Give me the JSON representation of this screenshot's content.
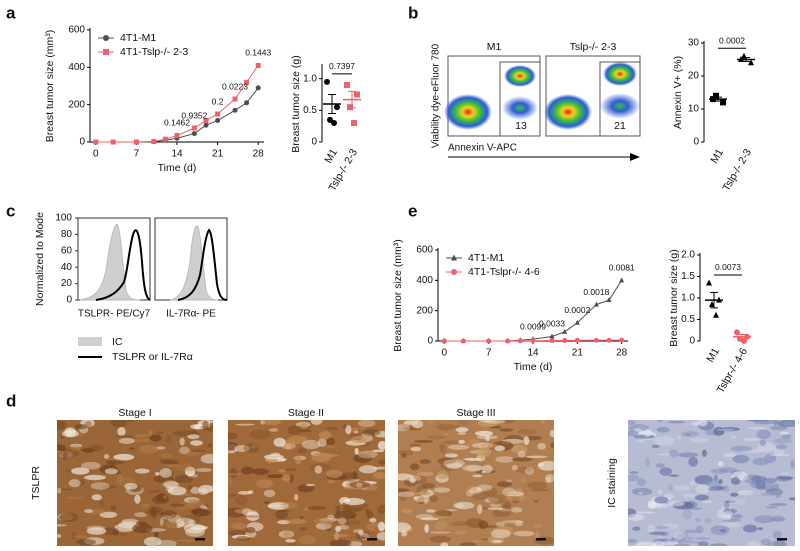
{
  "panel_labels": [
    "a",
    "b",
    "c",
    "d",
    "e"
  ],
  "chart_data": [
    {
      "type": "line",
      "ylabel": "Breast tumor size (mm³)",
      "xlabel": "Time (d)",
      "x": [
        0,
        3,
        7,
        10,
        12,
        14,
        17,
        19,
        21,
        24,
        26,
        28
      ],
      "xlim": [
        -1,
        29
      ],
      "xticks": [
        0,
        7,
        14,
        21,
        28
      ],
      "ylim": [
        0,
        600
      ],
      "yticks": [
        0,
        200,
        400,
        600
      ],
      "legend": "upper left",
      "series": [
        {
          "name": "4T1-M1",
          "color": "#4d4d4d",
          "marker": "circle",
          "values": [
            0,
            0,
            0,
            2,
            10,
            20,
            45,
            90,
            115,
            170,
            210,
            290
          ]
        },
        {
          "name": "4T1-Tslp-/- 2-3",
          "color": "#f0606a",
          "marker": "square",
          "values": [
            0,
            0,
            0,
            3,
            15,
            35,
            75,
            115,
            150,
            230,
            320,
            410
          ]
        }
      ],
      "annotations": [
        {
          "x": 14,
          "text": "0.1462"
        },
        {
          "x": 17,
          "text": "0.9352"
        },
        {
          "x": 21,
          "text": "0.2"
        },
        {
          "x": 24,
          "text": "0.0223"
        },
        {
          "x": 28,
          "text": "0.1443"
        }
      ]
    },
    {
      "type": "dot",
      "ylabel": "Breast tumor size (g)",
      "categories": [
        "M1",
        "Tslp-/- 2-3"
      ],
      "points": [
        [
          0.95,
          0.55,
          0.35,
          0.3
        ],
        [
          0.9,
          0.75,
          0.55,
          0.3
        ]
      ],
      "means": [
        0.6,
        0.67
      ],
      "errors": [
        0.15,
        0.13
      ],
      "colors": [
        "#000000",
        "#f0606a"
      ],
      "markers": [
        "circle",
        "square"
      ],
      "ylim": [
        0,
        1.2
      ],
      "yticks": [
        0,
        0.5,
        {
          "value": 1,
          "label": "1.0"
        }
      ],
      "annotation": "0.7397"
    },
    {
      "type": "dot",
      "ylabel": "Annexin V+ (%)",
      "categories": [
        "M1",
        "Tslp-/- 2-3"
      ],
      "points": [
        [
          13,
          12,
          14
        ],
        [
          25,
          24,
          26
        ]
      ],
      "means": [
        13,
        25
      ],
      "errors": [
        0.6,
        0.6
      ],
      "colors": [
        "#000000",
        "#000000"
      ],
      "markers": [
        "square",
        "triangle"
      ],
      "ylim": [
        0,
        30
      ],
      "yticks": [
        0,
        10,
        20,
        30
      ],
      "annotation": "0.0002"
    },
    {
      "type": "line",
      "ylabel": "Breast tumor size (mm³)",
      "xlabel": "Time (d)",
      "x": [
        0,
        3,
        7,
        10,
        12,
        14,
        17,
        19,
        21,
        24,
        26,
        28
      ],
      "xlim": [
        -1,
        29
      ],
      "xticks": [
        0,
        7,
        14,
        21,
        28
      ],
      "ylim": [
        0,
        600
      ],
      "yticks": [
        0,
        200,
        400,
        600
      ],
      "legend": "upper left",
      "series": [
        {
          "name": "4T1-M1",
          "color": "#4d4d4d",
          "marker": "triangle",
          "values": [
            0,
            0,
            0,
            1,
            5,
            12,
            30,
            60,
            120,
            240,
            270,
            400
          ]
        },
        {
          "name": "4T1-Tslpr-/- 4-6",
          "color": "#f0606a",
          "marker": "circle",
          "values": [
            0,
            0,
            0,
            0,
            1,
            2,
            3,
            3,
            4,
            5,
            5,
            6
          ]
        }
      ],
      "annotations": [
        {
          "x": 14,
          "text": "0.0099"
        },
        {
          "x": 17,
          "text": "0.0033"
        },
        {
          "x": 21,
          "text": "0.0002"
        },
        {
          "x": 24,
          "text": "0.0018"
        },
        {
          "x": 28,
          "text": "0.0081"
        }
      ]
    },
    {
      "type": "dot",
      "ylabel": "Breast tumor size (g)",
      "categories": [
        "M1",
        "Tslpr-/- 4-6"
      ],
      "points": [
        [
          1.35,
          0.95,
          0.85,
          0.6
        ],
        [
          0.2,
          0.1,
          0.05,
          0.0
        ]
      ],
      "means": [
        0.95,
        0.1
      ],
      "errors": [
        0.18,
        0.05
      ],
      "colors": [
        "#000000",
        "#f0606a"
      ],
      "markers": [
        "triangle",
        "circle"
      ],
      "ylim": [
        0,
        2
      ],
      "yticks": [
        0,
        0.5,
        {
          "value": 1,
          "label": "1.0"
        },
        1.5,
        {
          "value": 2,
          "label": "2.0"
        }
      ],
      "annotation": "0.0073"
    }
  ],
  "flow": {
    "ylabel": "Viability dye-eFluor 780",
    "xlabel": "Annexin V-APC",
    "plots": [
      {
        "title": "M1",
        "gate_value": 13
      },
      {
        "title": "Tslp-/- 2-3",
        "gate_value": 21
      }
    ]
  },
  "histograms": {
    "ylabel": "Normalized to Mode",
    "yticks": [
      0,
      20,
      40,
      60,
      80,
      100
    ],
    "plots": [
      "TSLPR- PE/Cy7",
      "IL-7Rα- PE"
    ],
    "legend": [
      "IC",
      "TSLPR or IL-7Rα"
    ]
  },
  "micrographs": {
    "row_label": "TSLPR",
    "stages": [
      "Stage I",
      "Stage II",
      "Stage III"
    ],
    "control_label": "IC staining"
  }
}
